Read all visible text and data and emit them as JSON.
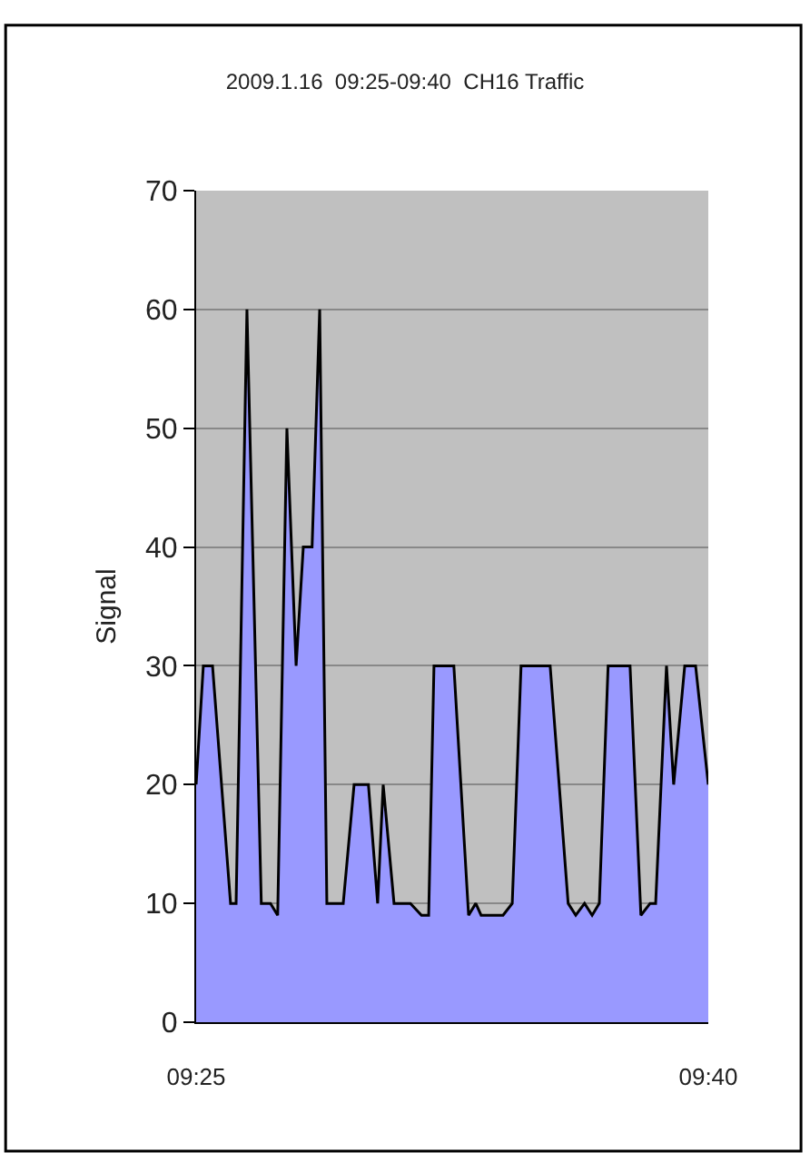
{
  "chart_data": {
    "type": "area",
    "title": "2009.1.16  09:25-09:40  CH16 Traffic",
    "ylabel": "Signal",
    "x": [
      9.4167,
      9.4202,
      9.4247,
      9.4335,
      9.4362,
      9.4415,
      9.4485,
      9.453,
      9.4565,
      9.461,
      9.4655,
      9.469,
      9.4733,
      9.477,
      9.4805,
      9.4885,
      9.4938,
      9.5008,
      9.5053,
      9.508,
      9.5133,
      9.5213,
      9.5267,
      9.5302,
      9.5328,
      9.5425,
      9.5497,
      9.5532,
      9.5558,
      9.5665,
      9.571,
      9.5753,
      9.5895,
      9.5983,
      9.602,
      9.6063,
      9.61,
      9.6135,
      9.6178,
      9.6285,
      9.6338,
      9.6383,
      9.641,
      9.6463,
      9.6498,
      9.6552,
      9.6605,
      9.6667
    ],
    "series": [
      {
        "color": "#9999ff",
        "values": [
          20,
          30,
          30,
          10,
          10,
          60,
          10,
          10,
          9,
          50,
          30,
          40,
          40,
          60,
          10,
          10,
          20,
          20,
          10,
          20,
          10,
          10,
          9,
          9,
          30,
          30,
          9,
          10,
          9,
          9,
          10,
          30,
          30,
          10,
          9,
          10,
          9,
          10,
          30,
          30,
          9,
          10,
          10,
          30,
          20,
          30,
          30,
          20
        ]
      }
    ],
    "xlim": [
      9.4167,
      9.6667
    ],
    "xticks": [
      {
        "value": 9.4167,
        "label": "09:25"
      },
      {
        "value": 9.6667,
        "label": "09:40"
      }
    ],
    "ylim": [
      0,
      70
    ],
    "yticks": [
      0,
      10,
      20,
      30,
      40,
      50,
      60,
      70
    ],
    "grid": "y",
    "marker": "none",
    "line_style": "solid"
  }
}
